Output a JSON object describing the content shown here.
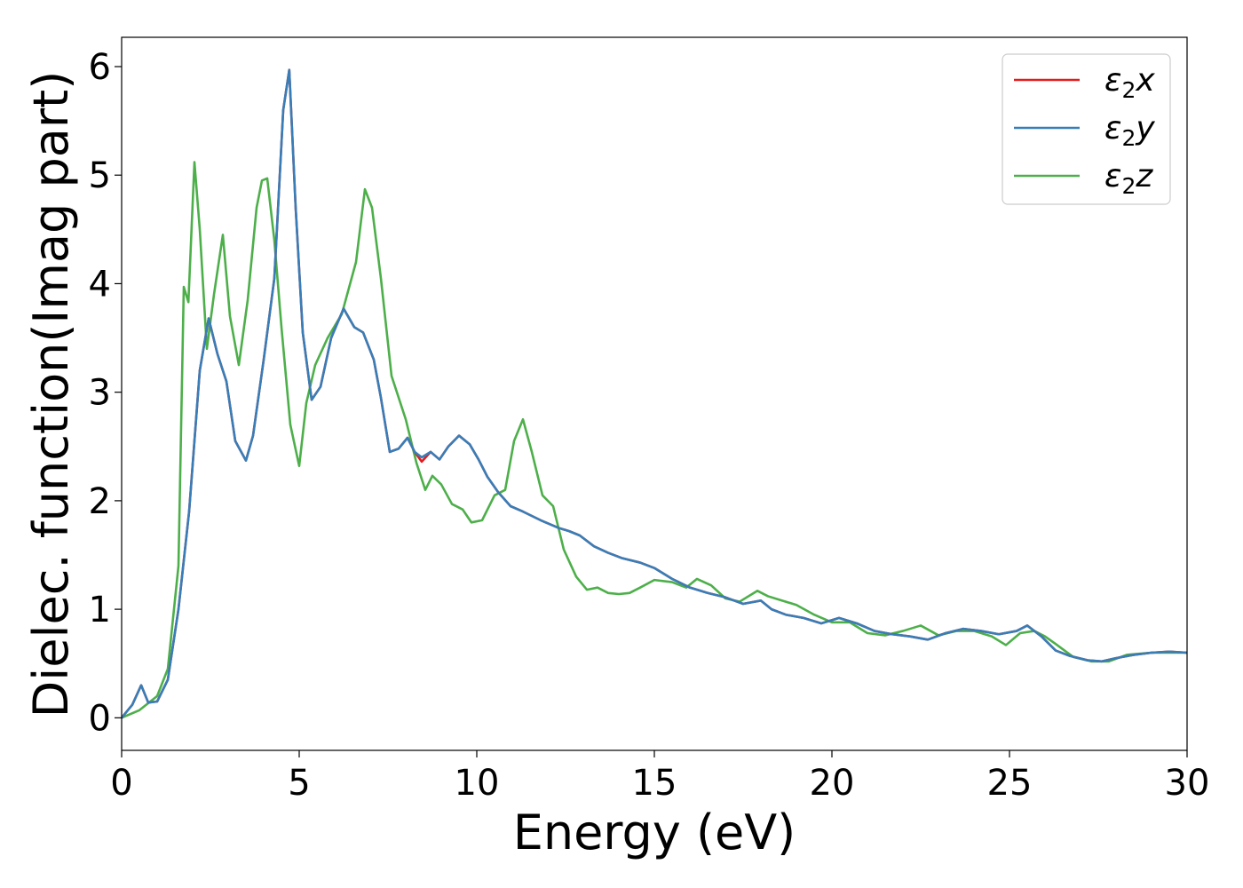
{
  "chart_data": {
    "type": "line",
    "title": "",
    "xlabel": "Energy (eV)",
    "ylabel": "Dielec. function(Imag part)",
    "xlim": [
      0,
      30
    ],
    "ylim": [
      -0.3,
      6.27
    ],
    "xticks": [
      0,
      5,
      10,
      15,
      20,
      25,
      30
    ],
    "yticks": [
      0,
      1,
      2,
      3,
      4,
      5,
      6
    ],
    "grid": false,
    "legend_position": "top-right",
    "series": [
      {
        "name": "ε2x",
        "symbol": "ε",
        "sub": "2",
        "axis": "x",
        "color": "#e41a1c",
        "x": [
          0,
          0.3,
          0.55,
          0.75,
          1.0,
          1.3,
          1.6,
          1.9,
          2.2,
          2.45,
          2.7,
          2.95,
          3.2,
          3.5,
          3.7,
          4.0,
          4.3,
          4.55,
          4.72,
          4.9,
          5.1,
          5.35,
          5.6,
          5.9,
          6.25,
          6.55,
          6.8,
          7.1,
          7.3,
          7.55,
          7.8,
          8.05,
          8.25,
          8.45,
          8.7,
          8.95,
          9.2,
          9.5,
          9.8,
          10.05,
          10.3,
          10.6,
          10.95,
          11.3,
          11.8,
          12.3,
          12.6,
          12.9,
          13.3,
          13.7,
          14.1,
          14.6,
          15.0,
          15.5,
          16.0,
          16.5,
          17.0,
          17.5,
          18.0,
          18.3,
          18.7,
          19.2,
          19.7,
          20.2,
          20.7,
          21.2,
          21.7,
          22.2,
          22.7,
          23.2,
          23.7,
          24.2,
          24.7,
          25.2,
          25.5,
          25.9,
          26.3,
          26.7,
          27.2,
          27.6,
          28.0,
          28.5,
          29.0,
          29.5,
          30.0
        ],
        "y": [
          0.0,
          0.12,
          0.3,
          0.14,
          0.15,
          0.35,
          1.0,
          1.9,
          3.2,
          3.68,
          3.35,
          3.1,
          2.55,
          2.37,
          2.6,
          3.3,
          4.05,
          5.6,
          5.97,
          4.7,
          3.55,
          2.93,
          3.05,
          3.5,
          3.77,
          3.6,
          3.55,
          3.3,
          2.95,
          2.45,
          2.48,
          2.58,
          2.45,
          2.36,
          2.45,
          2.38,
          2.5,
          2.6,
          2.52,
          2.38,
          2.22,
          2.08,
          1.95,
          1.9,
          1.82,
          1.75,
          1.72,
          1.68,
          1.58,
          1.52,
          1.47,
          1.43,
          1.38,
          1.28,
          1.2,
          1.15,
          1.11,
          1.05,
          1.08,
          1.0,
          0.95,
          0.92,
          0.87,
          0.92,
          0.87,
          0.8,
          0.77,
          0.75,
          0.72,
          0.78,
          0.82,
          0.8,
          0.77,
          0.8,
          0.85,
          0.75,
          0.62,
          0.57,
          0.53,
          0.52,
          0.55,
          0.58,
          0.6,
          0.61,
          0.6
        ]
      },
      {
        "name": "ε2y",
        "symbol": "ε",
        "sub": "2",
        "axis": "y",
        "color": "#377eb8",
        "x": [
          0,
          0.3,
          0.55,
          0.75,
          1.0,
          1.3,
          1.6,
          1.9,
          2.2,
          2.45,
          2.7,
          2.95,
          3.2,
          3.5,
          3.7,
          4.0,
          4.3,
          4.55,
          4.72,
          4.9,
          5.1,
          5.35,
          5.6,
          5.9,
          6.25,
          6.55,
          6.8,
          7.1,
          7.3,
          7.55,
          7.8,
          8.05,
          8.25,
          8.45,
          8.7,
          8.95,
          9.2,
          9.5,
          9.8,
          10.05,
          10.3,
          10.6,
          10.95,
          11.3,
          11.8,
          12.3,
          12.6,
          12.9,
          13.3,
          13.7,
          14.1,
          14.6,
          15.0,
          15.5,
          16.0,
          16.5,
          17.0,
          17.5,
          18.0,
          18.3,
          18.7,
          19.2,
          19.7,
          20.2,
          20.7,
          21.2,
          21.7,
          22.2,
          22.7,
          23.2,
          23.7,
          24.2,
          24.7,
          25.2,
          25.5,
          25.9,
          26.3,
          26.7,
          27.2,
          27.6,
          28.0,
          28.5,
          29.0,
          29.5,
          30.0
        ],
        "y": [
          0.0,
          0.12,
          0.3,
          0.14,
          0.15,
          0.35,
          1.0,
          1.9,
          3.2,
          3.68,
          3.35,
          3.1,
          2.55,
          2.37,
          2.6,
          3.3,
          4.05,
          5.6,
          5.97,
          4.7,
          3.55,
          2.93,
          3.05,
          3.5,
          3.77,
          3.6,
          3.55,
          3.3,
          2.95,
          2.45,
          2.48,
          2.58,
          2.45,
          2.4,
          2.45,
          2.38,
          2.5,
          2.6,
          2.52,
          2.38,
          2.22,
          2.08,
          1.95,
          1.9,
          1.82,
          1.75,
          1.72,
          1.68,
          1.58,
          1.52,
          1.47,
          1.43,
          1.38,
          1.28,
          1.2,
          1.15,
          1.11,
          1.05,
          1.08,
          1.0,
          0.95,
          0.92,
          0.87,
          0.92,
          0.87,
          0.8,
          0.77,
          0.75,
          0.72,
          0.78,
          0.82,
          0.8,
          0.77,
          0.8,
          0.85,
          0.75,
          0.62,
          0.57,
          0.53,
          0.52,
          0.55,
          0.58,
          0.6,
          0.61,
          0.6
        ]
      },
      {
        "name": "ε2z",
        "symbol": "ε",
        "sub": "2",
        "axis": "z",
        "color": "#4daf4a",
        "x": [
          0,
          0.5,
          1.0,
          1.3,
          1.6,
          1.75,
          1.88,
          2.05,
          2.2,
          2.4,
          2.6,
          2.85,
          3.05,
          3.3,
          3.55,
          3.8,
          3.95,
          4.1,
          4.3,
          4.5,
          4.75,
          5.0,
          5.2,
          5.45,
          5.8,
          6.2,
          6.6,
          6.85,
          7.05,
          7.3,
          7.6,
          8.0,
          8.3,
          8.55,
          8.75,
          9.0,
          9.3,
          9.6,
          9.85,
          10.15,
          10.5,
          10.8,
          11.05,
          11.3,
          11.55,
          11.85,
          12.15,
          12.45,
          12.8,
          13.1,
          13.4,
          13.7,
          14.0,
          14.3,
          14.6,
          15.0,
          15.5,
          15.9,
          16.2,
          16.6,
          17.0,
          17.4,
          17.9,
          18.2,
          18.6,
          19.0,
          19.5,
          20.0,
          20.5,
          21.0,
          21.5,
          22.0,
          22.5,
          23.0,
          23.5,
          24.0,
          24.5,
          24.9,
          25.3,
          25.7,
          26.0,
          26.3,
          26.8,
          27.3,
          27.8,
          28.3,
          29.0,
          29.5,
          30.0
        ],
        "y": [
          0.0,
          0.07,
          0.2,
          0.45,
          1.4,
          3.97,
          3.83,
          5.12,
          4.5,
          3.4,
          3.9,
          4.45,
          3.7,
          3.25,
          3.85,
          4.7,
          4.95,
          4.97,
          4.4,
          3.6,
          2.7,
          2.32,
          2.9,
          3.25,
          3.5,
          3.72,
          4.2,
          4.87,
          4.7,
          4.05,
          3.15,
          2.75,
          2.35,
          2.1,
          2.23,
          2.15,
          1.97,
          1.92,
          1.8,
          1.82,
          2.05,
          2.1,
          2.55,
          2.75,
          2.45,
          2.05,
          1.95,
          1.55,
          1.3,
          1.18,
          1.2,
          1.15,
          1.14,
          1.15,
          1.2,
          1.27,
          1.25,
          1.2,
          1.28,
          1.22,
          1.1,
          1.07,
          1.17,
          1.12,
          1.08,
          1.04,
          0.95,
          0.88,
          0.88,
          0.78,
          0.76,
          0.8,
          0.85,
          0.76,
          0.8,
          0.8,
          0.75,
          0.67,
          0.78,
          0.8,
          0.75,
          0.68,
          0.56,
          0.52,
          0.52,
          0.58,
          0.6,
          0.6,
          0.6
        ]
      }
    ]
  }
}
